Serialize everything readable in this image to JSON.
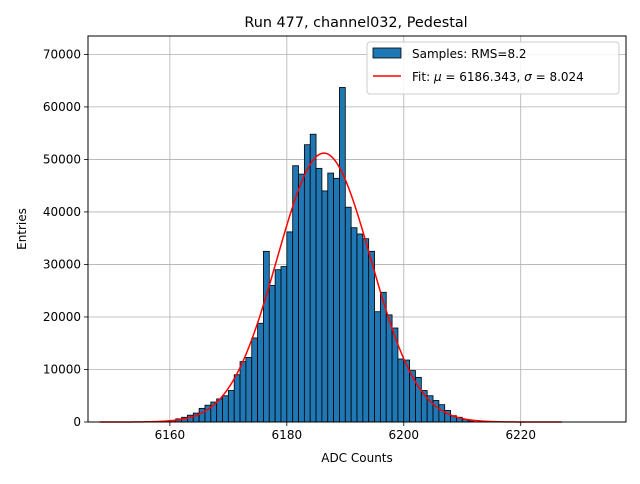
{
  "chart_data": {
    "type": "bar",
    "title": "Run 477, channel032, Pedestal",
    "xlabel": "ADC Counts",
    "ylabel": "Entries",
    "xlim": [
      6146,
      6238
    ],
    "ylim": [
      0,
      73500
    ],
    "xticks": [
      6160,
      6180,
      6200,
      6220
    ],
    "yticks": [
      0,
      10000,
      20000,
      30000,
      40000,
      50000,
      60000,
      70000
    ],
    "grid": true,
    "legend_position": "top-right",
    "legend": {
      "hist_label": "Samples: RMS=8.2",
      "fit_label_prefix": "Fit: ",
      "fit_mu_symbol": "μ",
      "fit_mu_value": " = 6186.343, ",
      "fit_sigma_symbol": "σ",
      "fit_sigma_value": " = 8.024"
    },
    "bin_edges_start": 6160,
    "bin_width": 1,
    "counts": [
      300,
      600,
      900,
      1300,
      1700,
      2600,
      3200,
      3800,
      4400,
      5000,
      6000,
      9000,
      11500,
      12300,
      16000,
      18800,
      32500,
      26000,
      29000,
      29600,
      36200,
      48800,
      47200,
      52800,
      54800,
      48300,
      44000,
      47400,
      46400,
      63700,
      40900,
      37000,
      35800,
      34900,
      32500,
      21000,
      24700,
      20400,
      17900,
      12000,
      11800,
      9800,
      8500,
      6000,
      5000,
      4100,
      3300,
      2200,
      1200,
      900,
      500,
      200
    ],
    "fit": {
      "mu": 6186.343,
      "sigma": 8.024,
      "amplitude": 51200,
      "x_range": [
        6148,
        6227
      ],
      "color": "#ff0000"
    },
    "bar_color": "#1f77b4"
  }
}
